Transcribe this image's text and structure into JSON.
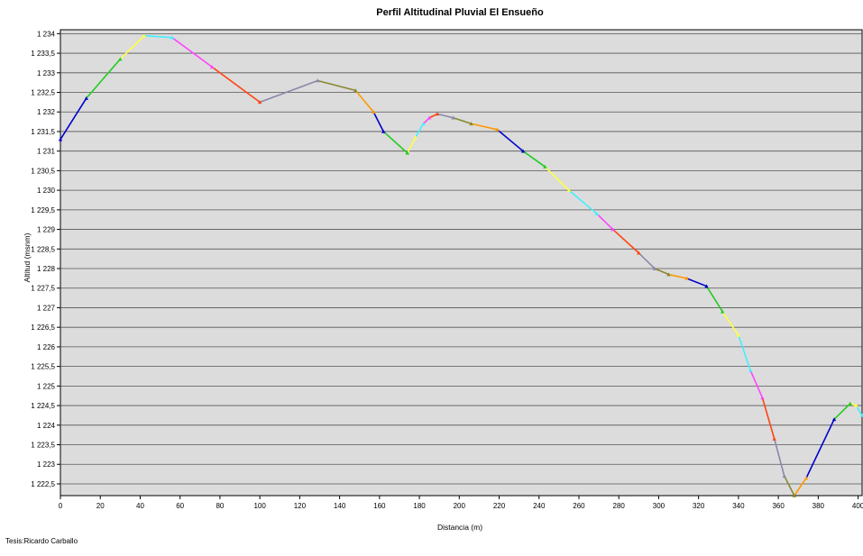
{
  "footer": "Tesis:Ricardo Carballo",
  "chart_data": {
    "type": "line",
    "title": "Perfil Altitudinal Pluvial El Ensueño",
    "xlabel": "Distancia (m)",
    "ylabel": "Altitud (msnm)",
    "xlim": [
      0,
      402
    ],
    "ylim": [
      1222.2,
      1234.1
    ],
    "x_ticks": [
      0,
      20,
      40,
      60,
      80,
      100,
      120,
      140,
      160,
      180,
      200,
      220,
      240,
      260,
      280,
      300,
      320,
      340,
      360,
      380,
      400
    ],
    "y_ticks": [
      1222.5,
      1223,
      1223.5,
      1224,
      1224.5,
      1225,
      1225.5,
      1226,
      1226.5,
      1227,
      1227.5,
      1228,
      1228.5,
      1229,
      1229.5,
      1230,
      1230.5,
      1231,
      1231.5,
      1232,
      1232.5,
      1233,
      1233.5,
      1234
    ],
    "x_tick_labels": [
      "0",
      "20",
      "40",
      "60",
      "80",
      "100",
      "120",
      "140",
      "160",
      "180",
      "200",
      "220",
      "240",
      "260",
      "280",
      "300",
      "320",
      "340",
      "360",
      "380",
      "400"
    ],
    "y_tick_labels": [
      "1 222,5",
      "1 223",
      "1 223,5",
      "1 224",
      "1 224,5",
      "1 225",
      "1 225,5",
      "1 226",
      "1 226,5",
      "1 227",
      "1 227,5",
      "1 228",
      "1 228,5",
      "1 229",
      "1 229,5",
      "1 230",
      "1 230,5",
      "1 231",
      "1 231,5",
      "1 232",
      "1 232,5",
      "1 233",
      "1 233,5",
      "1 234"
    ],
    "grid": true,
    "background": "#dcdcdc",
    "segment_colors": [
      "#0000cc",
      "#22cc22",
      "#ffff44",
      "#44eeff",
      "#ff44ff",
      "#ff4411",
      "#8888aa",
      "#888833",
      "#ff9900"
    ],
    "x": [
      0,
      13,
      30,
      42,
      56,
      76,
      100,
      129,
      148,
      157,
      162,
      174,
      178,
      182,
      185,
      189,
      197,
      206,
      219,
      232,
      243,
      255,
      269,
      277,
      290,
      298,
      305,
      314,
      324,
      332,
      340,
      346,
      352,
      358,
      363,
      368,
      374,
      388,
      396,
      399,
      402
    ],
    "y": [
      1231.3,
      1232.35,
      1233.35,
      1233.95,
      1233.9,
      1233.15,
      1232.25,
      1232.8,
      1232.55,
      1232.0,
      1231.5,
      1230.95,
      1231.35,
      1231.7,
      1231.85,
      1231.95,
      1231.85,
      1231.7,
      1231.55,
      1231.0,
      1230.6,
      1230.0,
      1229.4,
      1229.0,
      1228.4,
      1228.0,
      1227.85,
      1227.75,
      1227.55,
      1226.9,
      1226.3,
      1225.4,
      1224.7,
      1223.65,
      1222.7,
      1222.2,
      1222.65,
      1224.15,
      1224.55,
      1224.5,
      1224.25
    ]
  }
}
